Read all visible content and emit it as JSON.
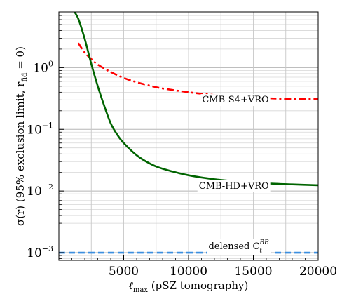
{
  "chart_data": {
    "type": "line",
    "xlabel": "ℓmax (pSZ tomography)",
    "xlabel_main": "ℓ",
    "xlabel_sub": "max",
    "xlabel_rest": " (pSZ tomography)",
    "ylabel": "σ(r) (95% exclusion limit, r_fid = 0)",
    "ylabel_main": "σ(r) (95% exclusion limit, r",
    "ylabel_sub": "fid",
    "ylabel_rest": " = 0)",
    "xlim": [
      0,
      20000
    ],
    "ylim": [
      0.00075,
      8
    ],
    "yscale": "log",
    "grid": true,
    "x_ticks": [
      5000,
      10000,
      15000,
      20000
    ],
    "x_tick_labels": [
      "5000",
      "10000",
      "15000",
      "20000"
    ],
    "y_ticks": [
      0.001,
      0.01,
      0.1,
      1
    ],
    "y_tick_labels": [
      {
        "base": "10",
        "exp": "−3"
      },
      {
        "base": "10",
        "exp": "−2"
      },
      {
        "base": "10",
        "exp": "−1"
      },
      {
        "base": "10",
        "exp": "0"
      }
    ],
    "series": [
      {
        "name": "CMB-S4+VRO",
        "color": "#ff0000",
        "style": "dashdot",
        "x": [
          1500,
          2000,
          2500,
          3000,
          4000,
          5000,
          6000,
          7000,
          8000,
          10000,
          12000,
          14000,
          16000,
          18000,
          20000
        ],
        "y": [
          2.5,
          1.75,
          1.38,
          1.12,
          0.85,
          0.68,
          0.58,
          0.51,
          0.46,
          0.4,
          0.36,
          0.34,
          0.32,
          0.31,
          0.31
        ]
      },
      {
        "name": "CMB-HD+VRO",
        "color": "#006400",
        "style": "solid",
        "x": [
          1200,
          1500,
          2000,
          2500,
          3000,
          3500,
          4000,
          4500,
          5000,
          6000,
          7000,
          8000,
          10000,
          12000,
          14000,
          16000,
          18000,
          20000
        ],
        "y": [
          8,
          6.2,
          2.9,
          1.15,
          0.5,
          0.24,
          0.125,
          0.082,
          0.06,
          0.038,
          0.028,
          0.023,
          0.018,
          0.0155,
          0.0142,
          0.0133,
          0.0128,
          0.0124
        ]
      },
      {
        "name": "delensed C_ℓ^BB",
        "color": "#3b8fe0",
        "style": "dashed",
        "x": [
          0,
          20000
        ],
        "y": [
          0.001,
          0.001
        ]
      }
    ],
    "annotations": [
      {
        "text": "CMB-S4+VRO",
        "x": 16200,
        "y": 0.31
      },
      {
        "text": "CMB-HD+VRO",
        "x": 16200,
        "y": 0.0124
      },
      {
        "text_main": "delensed C",
        "sup": "BB",
        "sub": "ℓ",
        "x": 16200,
        "y": 0.0013
      }
    ]
  }
}
